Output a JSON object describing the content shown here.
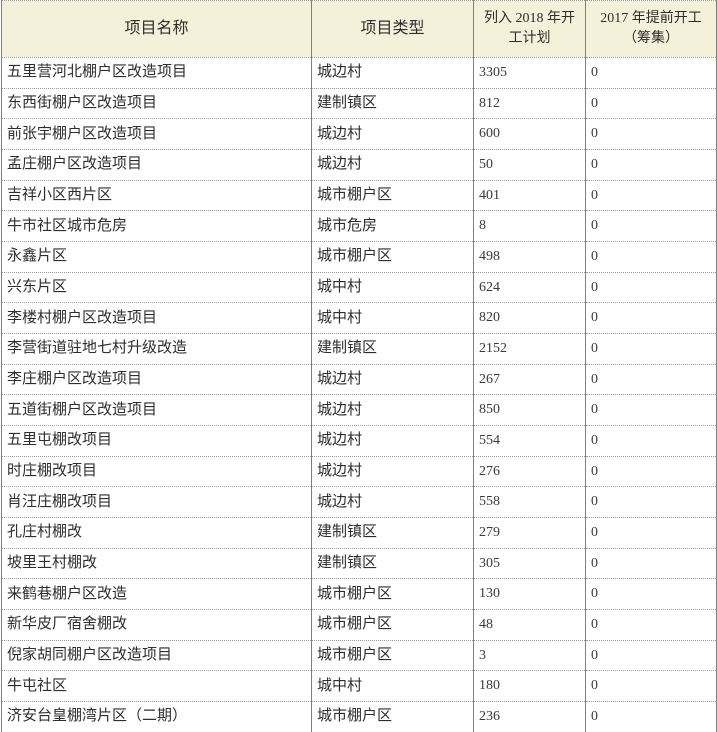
{
  "colors": {
    "header_bg": "#f5f0da",
    "solid_border": "#7f7f7f",
    "dotted_border": "#9a9a9a",
    "text": "#2e2e2e"
  },
  "table": {
    "headers": {
      "name": "项目名称",
      "type": "项目类型",
      "plan2018": "列入 2018 年开工计划",
      "early2017": "2017 年提前开工（筹集）"
    },
    "rows": [
      {
        "name": "五里营河北棚户区改造项目",
        "type": "城边村",
        "plan2018": "3305",
        "early2017": "0"
      },
      {
        "name": "东西街棚户区改造项目",
        "type": "建制镇区",
        "plan2018": "812",
        "early2017": "0"
      },
      {
        "name": "前张宇棚户区改造项目",
        "type": "城边村",
        "plan2018": "600",
        "early2017": "0"
      },
      {
        "name": "孟庄棚户区改造项目",
        "type": "城边村",
        "plan2018": "50",
        "early2017": "0"
      },
      {
        "name": "吉祥小区西片区",
        "type": "城市棚户区",
        "plan2018": "401",
        "early2017": "0"
      },
      {
        "name": "牛市社区城市危房",
        "type": "城市危房",
        "plan2018": "8",
        "early2017": "0"
      },
      {
        "name": "永鑫片区",
        "type": "城市棚户区",
        "plan2018": "498",
        "early2017": "0"
      },
      {
        "name": "兴东片区",
        "type": "城中村",
        "plan2018": "624",
        "early2017": "0"
      },
      {
        "name": "李楼村棚户区改造项目",
        "type": "城中村",
        "plan2018": "820",
        "early2017": "0"
      },
      {
        "name": "李营街道驻地七村升级改造",
        "type": "建制镇区",
        "plan2018": "2152",
        "early2017": "0"
      },
      {
        "name": "李庄棚户区改造项目",
        "type": "城边村",
        "plan2018": "267",
        "early2017": "0"
      },
      {
        "name": "五道街棚户区改造项目",
        "type": "城边村",
        "plan2018": "850",
        "early2017": "0"
      },
      {
        "name": "五里屯棚改项目",
        "type": "城边村",
        "plan2018": "554",
        "early2017": "0"
      },
      {
        "name": "时庄棚改项目",
        "type": "城边村",
        "plan2018": "276",
        "early2017": "0"
      },
      {
        "name": "肖汪庄棚改项目",
        "type": "城边村",
        "plan2018": "558",
        "early2017": "0"
      },
      {
        "name": "孔庄村棚改",
        "type": "建制镇区",
        "plan2018": "279",
        "early2017": "0"
      },
      {
        "name": "坡里王村棚改",
        "type": "建制镇区",
        "plan2018": "305",
        "early2017": "0"
      },
      {
        "name": "来鹤巷棚户区改造",
        "type": "城市棚户区",
        "plan2018": "130",
        "early2017": "0"
      },
      {
        "name": "新华皮厂宿舍棚改",
        "type": "城市棚户区",
        "plan2018": "48",
        "early2017": "0"
      },
      {
        "name": "倪家胡同棚户区改造项目",
        "type": "城市棚户区",
        "plan2018": "3",
        "early2017": "0"
      },
      {
        "name": "牛屯社区",
        "type": "城中村",
        "plan2018": "180",
        "early2017": "0"
      },
      {
        "name": "济安台皇棚湾片区（二期）",
        "type": "城市棚户区",
        "plan2018": "236",
        "early2017": "0"
      }
    ]
  }
}
